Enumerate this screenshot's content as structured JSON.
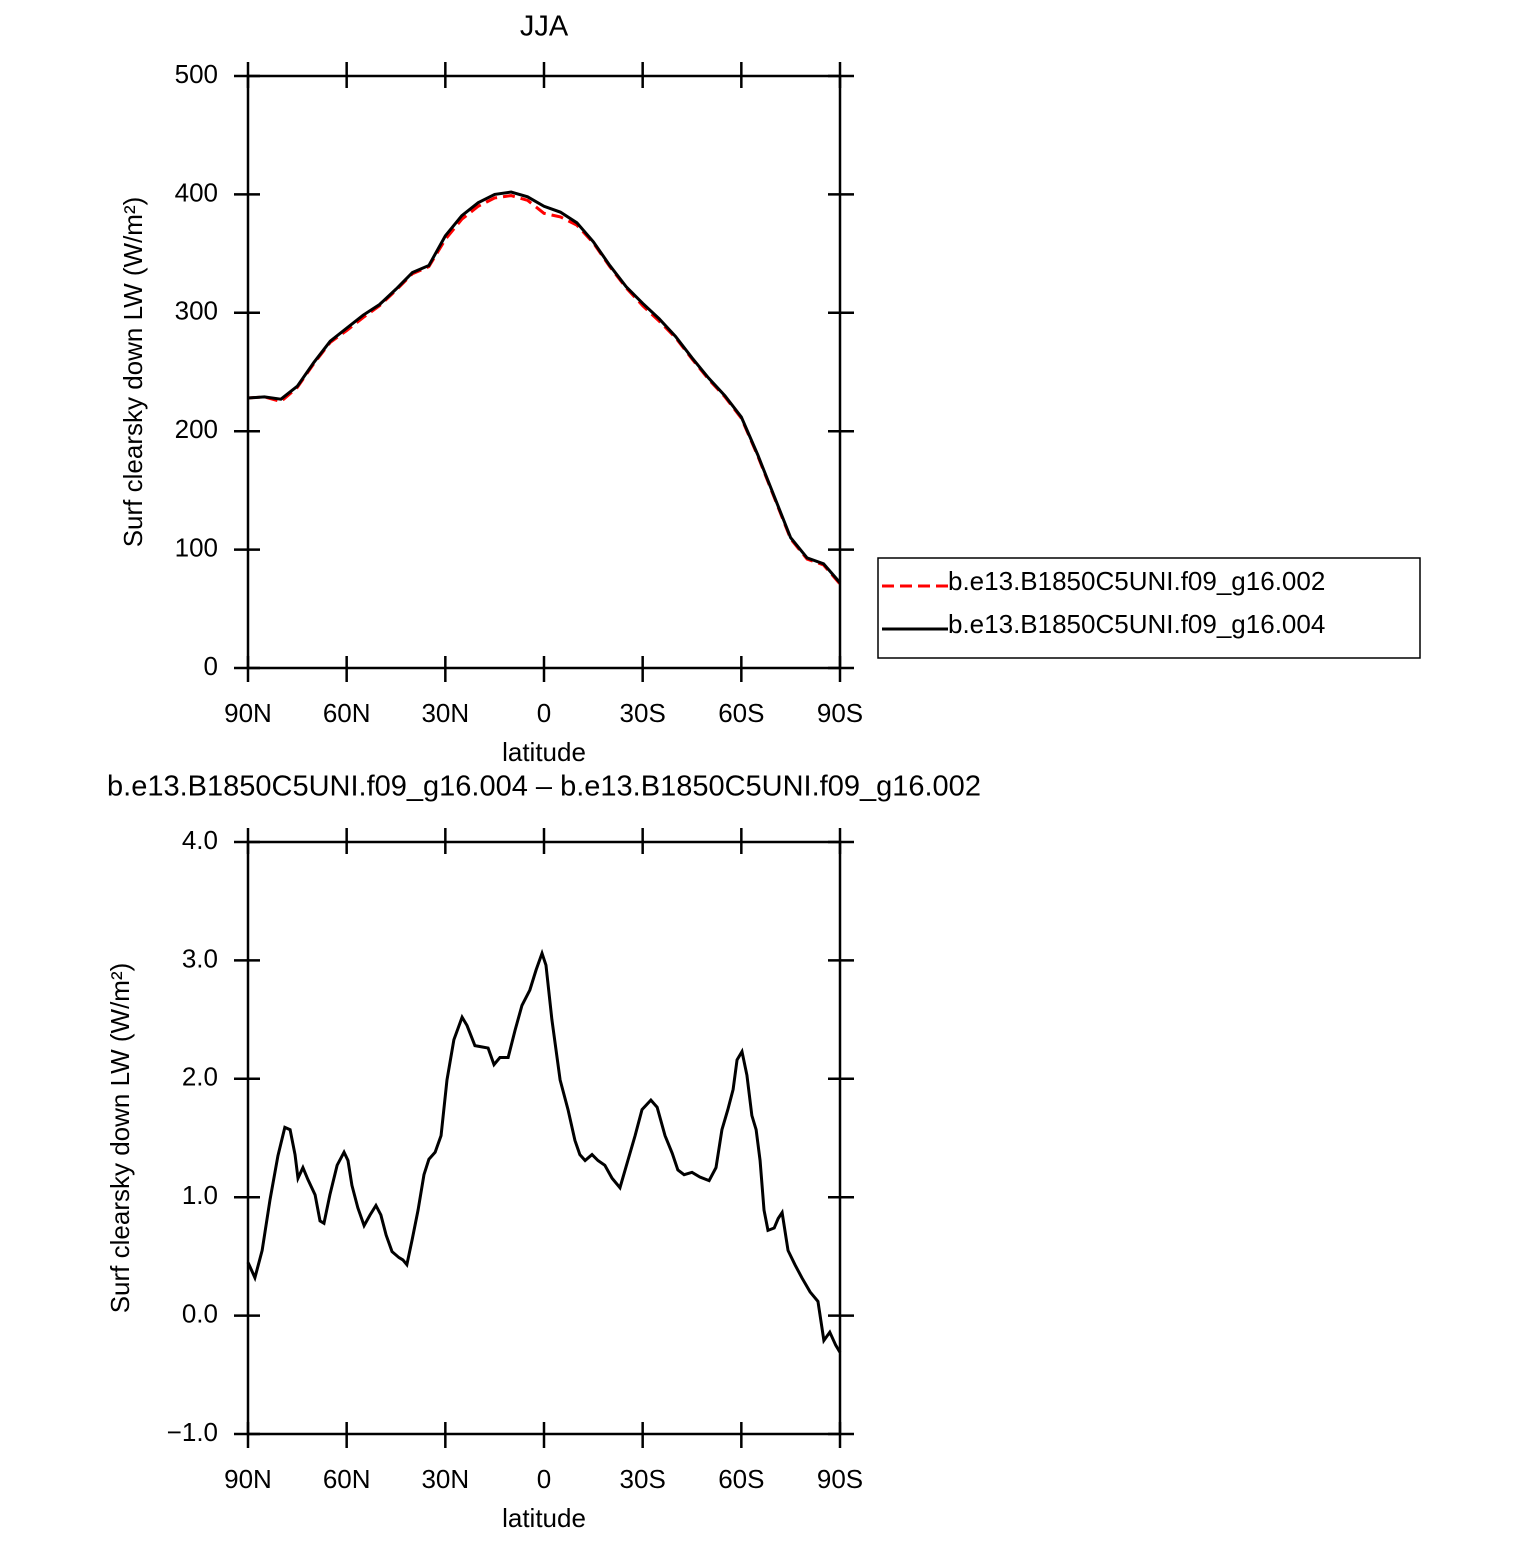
{
  "chart_data": [
    {
      "type": "line",
      "title": "JJA",
      "x_label": "latitude",
      "y_label": "Surf clearsky down LW (W/m²)",
      "x": [
        90,
        85,
        80,
        75,
        70,
        65,
        60,
        55,
        50,
        45,
        40,
        35,
        30,
        25,
        20,
        15,
        10,
        5,
        0,
        -5,
        -10,
        -15,
        -20,
        -25,
        -30,
        -35,
        -40,
        -45,
        -50,
        -55,
        -60,
        -65,
        -70,
        -75,
        -80,
        -85,
        -90
      ],
      "series": [
        {
          "name": "b.e13.B1850C5UNI.f09_g16.002",
          "color": "#ff0000",
          "line_style": "dashed",
          "values": [
            228,
            229,
            225,
            237,
            257,
            275,
            285,
            296,
            306,
            319,
            333,
            339,
            362,
            379,
            390,
            397,
            399,
            395,
            384,
            381,
            374,
            359,
            339,
            321,
            306,
            293,
            279,
            261,
            244,
            229,
            211,
            179,
            144,
            109,
            92,
            87,
            71
          ]
        },
        {
          "name": "b.e13.B1850C5UNI.f09_g16.004",
          "color": "#000000",
          "line_style": "solid",
          "values": [
            228,
            229,
            227,
            238,
            258,
            276,
            287,
            298,
            307,
            320,
            334,
            340,
            365,
            382,
            393,
            400,
            402,
            398,
            390,
            385,
            376,
            360,
            340,
            322,
            308,
            295,
            280,
            262,
            245,
            230,
            212,
            180,
            145,
            110,
            93,
            88,
            72
          ]
        }
      ],
      "xlim": [
        90,
        -90
      ],
      "xticks": [
        {
          "value": 90,
          "label": "90N"
        },
        {
          "value": 60,
          "label": "60N"
        },
        {
          "value": 30,
          "label": "30N"
        },
        0,
        {
          "value": -30,
          "label": "30S"
        },
        {
          "value": -60,
          "label": "60S"
        },
        {
          "value": -90,
          "label": "90S"
        }
      ],
      "ylim": [
        0,
        500
      ],
      "yticks": [
        0,
        100,
        200,
        300,
        400,
        500
      ],
      "legend": "right"
    },
    {
      "type": "line",
      "title": "b.e13.B1850C5UNI.f09_g16.004 – b.e13.B1850C5UNI.f09_g16.002",
      "x_label": "latitude",
      "y_label": "Surf clearsky down LW (W/m²)",
      "x": [
        90,
        87.9,
        85.7,
        83.3,
        80.9,
        78.8,
        77.2,
        75.7,
        74.8,
        73.3,
        71.8,
        69.6,
        68.1,
        66.9,
        65.1,
        62.9,
        60.8,
        59.6,
        58.4,
        56.6,
        54.7,
        52.9,
        51.1,
        49.6,
        48.0,
        46.2,
        44.1,
        42.9,
        41.7,
        40.1,
        38.3,
        36.5,
        35.0,
        33.1,
        31.3,
        29.5,
        27.4,
        24.9,
        23.4,
        21.0,
        17.0,
        15.2,
        13.4,
        10.9,
        8.8,
        6.7,
        4.3,
        2.4,
        0.6,
        -0.6,
        -2.4,
        -4.9,
        -7.3,
        -9.4,
        -10.9,
        -12.5,
        -14.6,
        -16.4,
        -18.5,
        -20.7,
        -23.1,
        -25.5,
        -27.7,
        -29.8,
        -32.5,
        -34.4,
        -36.8,
        -39.0,
        -40.7,
        -42.6,
        -45.0,
        -47.4,
        -50.2,
        -52.3,
        -54.1,
        -55.9,
        -57.5,
        -58.7,
        -60.2,
        -61.7,
        -63.2,
        -64.5,
        -65.7,
        -66.9,
        -68.1,
        -70.0,
        -71.2,
        -72.4,
        -74.2,
        -76.3,
        -78.4,
        -80.9,
        -83.3,
        -85.1,
        -86.9,
        -88.7,
        -90
      ],
      "values": [
        0.45,
        0.32,
        0.55,
        0.98,
        1.35,
        1.59,
        1.57,
        1.36,
        1.16,
        1.25,
        1.15,
        1.02,
        0.8,
        0.78,
        1.02,
        1.27,
        1.38,
        1.31,
        1.1,
        0.91,
        0.76,
        0.85,
        0.93,
        0.85,
        0.68,
        0.54,
        0.49,
        0.47,
        0.43,
        0.64,
        0.89,
        1.19,
        1.32,
        1.38,
        1.52,
        1.99,
        2.33,
        2.52,
        2.45,
        2.28,
        2.26,
        2.12,
        2.18,
        2.18,
        2.41,
        2.62,
        2.75,
        2.92,
        3.06,
        2.96,
        2.5,
        1.99,
        1.74,
        1.48,
        1.36,
        1.31,
        1.36,
        1.31,
        1.27,
        1.16,
        1.08,
        1.31,
        1.52,
        1.74,
        1.82,
        1.76,
        1.52,
        1.37,
        1.23,
        1.19,
        1.21,
        1.17,
        1.14,
        1.25,
        1.57,
        1.74,
        1.91,
        2.16,
        2.23,
        2.03,
        1.69,
        1.57,
        1.31,
        0.89,
        0.72,
        0.74,
        0.82,
        0.87,
        0.55,
        0.43,
        0.32,
        0.2,
        0.12,
        -0.21,
        -0.14,
        -0.25,
        -0.31
      ],
      "color": "#000000",
      "xlim": [
        90,
        -90
      ],
      "xticks": [
        {
          "value": 90,
          "label": "90N"
        },
        {
          "value": 60,
          "label": "60N"
        },
        {
          "value": 30,
          "label": "30N"
        },
        0,
        {
          "value": -30,
          "label": "30S"
        },
        {
          "value": -60,
          "label": "60S"
        },
        {
          "value": -90,
          "label": "90S"
        }
      ],
      "ylim": [
        -1,
        4
      ],
      "yticks": [
        {
          "value": -1,
          "label": "−1.0"
        },
        {
          "value": 0,
          "label": "0.0"
        },
        {
          "value": 1,
          "label": "1.0"
        },
        {
          "value": 2,
          "label": "2.0"
        },
        {
          "value": 3,
          "label": "3.0"
        },
        {
          "value": 4,
          "label": "4.0"
        }
      ]
    }
  ]
}
